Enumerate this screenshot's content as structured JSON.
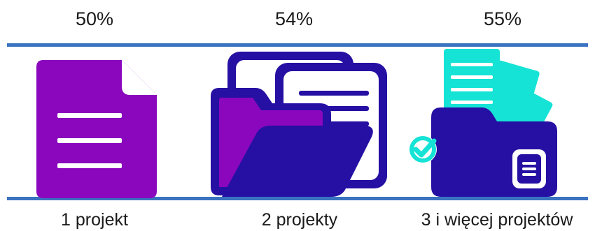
{
  "colors": {
    "rule": "#3a73c0",
    "purple": "#8a07bd",
    "navy": "#2510a3",
    "teal": "#15e3d6",
    "white": "#ffffff"
  },
  "items": [
    {
      "percent": "50%",
      "label": "1 projekt",
      "icon": "document-icon"
    },
    {
      "percent": "54%",
      "label": "2 projekty",
      "icon": "open-folder-with-documents-icon"
    },
    {
      "percent": "55%",
      "label": "3 i więcej projektów",
      "icon": "folder-with-documents-checkmark-icon"
    }
  ]
}
